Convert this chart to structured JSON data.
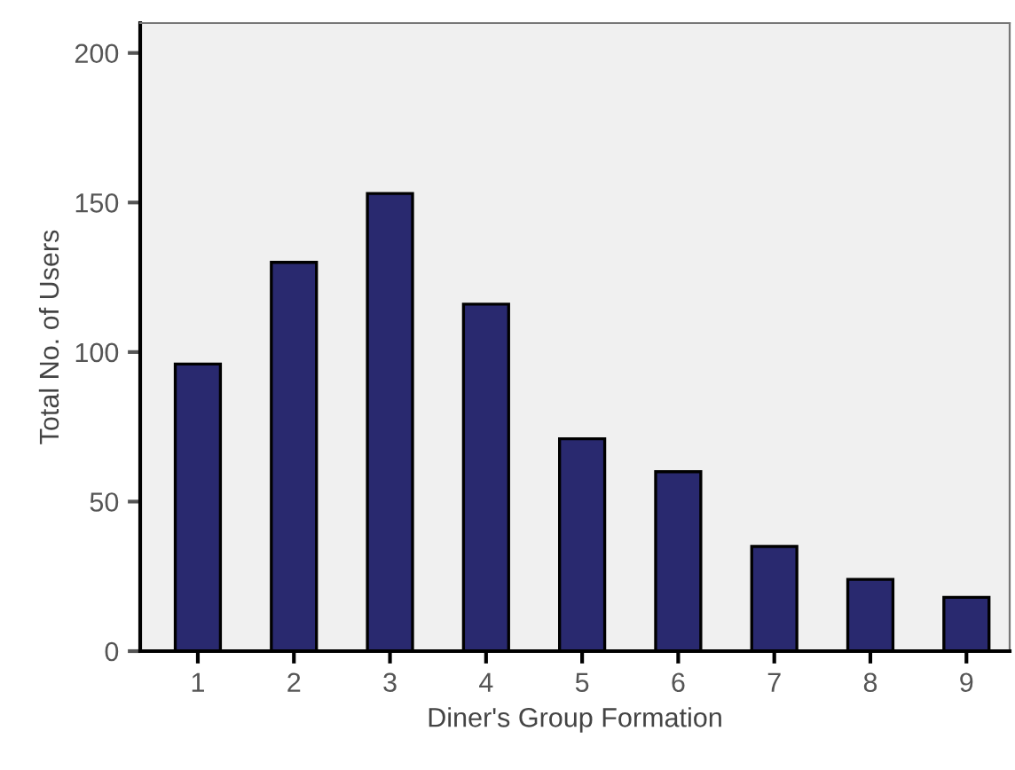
{
  "chart_data": {
    "type": "bar",
    "xlabel": "Diner's Group Formation",
    "ylabel": "Total No. of Users",
    "categories": [
      "1",
      "2",
      "3",
      "4",
      "5",
      "6",
      "7",
      "8",
      "9"
    ],
    "values": [
      96,
      130,
      153,
      116,
      71,
      60,
      35,
      24,
      18
    ],
    "color": "#29296f",
    "ylim": [
      0,
      210
    ],
    "yticks": [
      0,
      50,
      100,
      150,
      200
    ],
    "grid": false,
    "legend": false
  }
}
